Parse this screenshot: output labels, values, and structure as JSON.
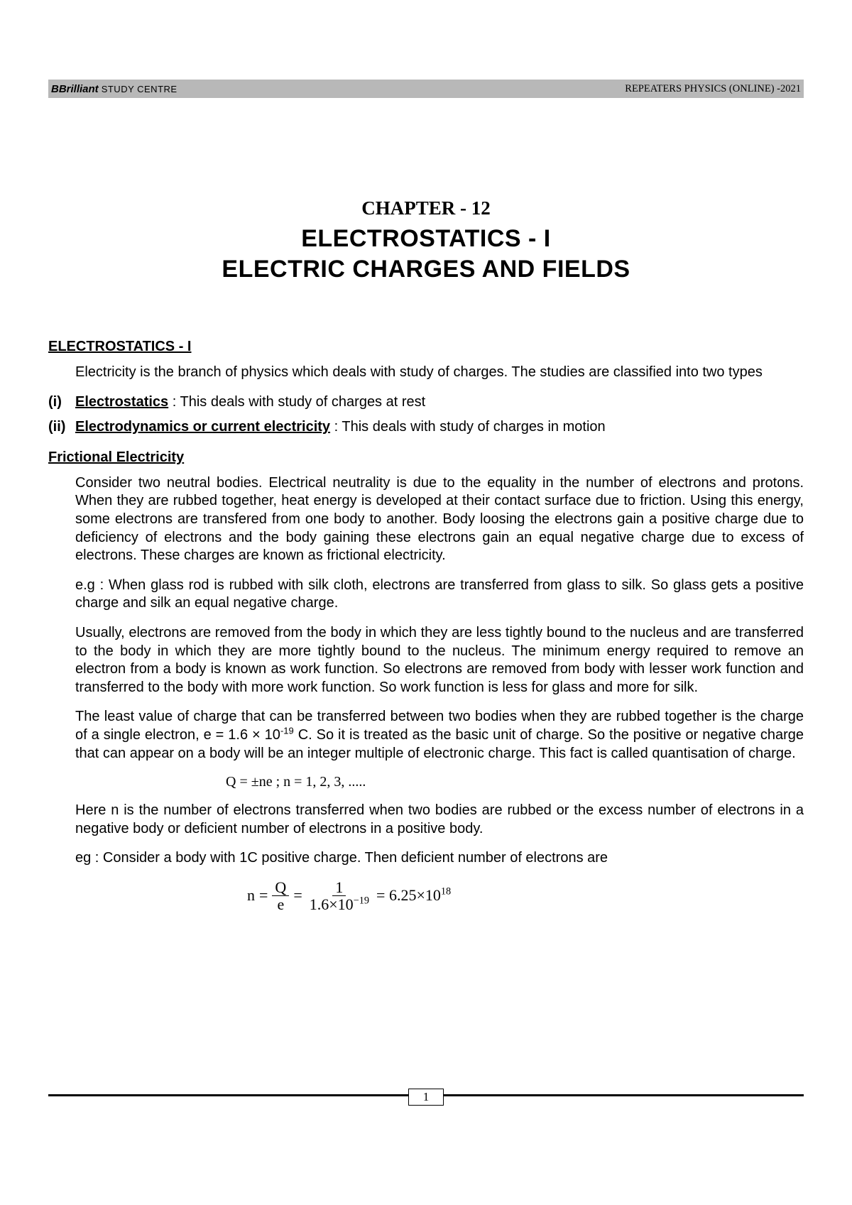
{
  "header": {
    "brand_bold": "BBrilliant",
    "brand_small": "STUDY CENTRE",
    "right": "REPEATERS PHYSICS (ONLINE) -2021"
  },
  "chapter_label": "CHAPTER - 12",
  "title_line1": "ELECTROSTATICS - I",
  "title_line2": "ELECTRIC CHARGES AND FIELDS",
  "section1_heading": "ELECTROSTATICS  -  I",
  "intro_para": "Electricity is the branch of physics which deals with study of charges. The studies are classified into two types",
  "item_i_marker": "(i)",
  "item_i_term": "Electrostatics",
  "item_i_rest": " : This deals with study of charges at rest",
  "item_ii_marker": "(ii)",
  "item_ii_term": "Electrodynamics or current electricity",
  "item_ii_rest": " : This deals with study of charges in motion",
  "subheading_frictional": "Frictional Electricity",
  "para_frictional_1": "Consider two neutral bodies. Electrical neutrality is due to the equality in the number of electrons and protons. When they are rubbed together, heat energy is developed at their contact surface due to friction. Using this energy, some electrons are transfered from one body to another. Body loosing the electrons gain a positive charge due to deficiency of electrons and the body gaining these electrons gain an equal negative charge due to excess of electrons. These charges are known as frictional electricity.",
  "para_frictional_2": "e.g : When glass rod is rubbed with silk cloth, electrons are transferred from glass to silk. So glass gets a positive charge and silk an equal negative charge.",
  "para_frictional_3": "Usually, electrons are removed from the body in which they are less tightly bound to the nucleus and are transferred to the body in which they are more tightly bound to the nucleus. The minimum energy required to remove an electron from a body is known as work function. So electrons are removed from body with lesser work function and transferred to the body with more work function. So work function is less for glass and more for silk.",
  "para_frictional_4a": "The least value of charge that can be transferred between two bodies when they are rubbed together is the charge of a single electron, e = 1.6 × 10",
  "para_frictional_4_exp": "-19",
  "para_frictional_4b": " C. So it is treated as the basic unit of charge. So the positive or negative charge that can appear on a body will be an integer multiple of electronic charge. This fact is called quantisation of charge.",
  "formula_quant": "Q = ±ne ; n = 1, 2, 3, .....",
  "para_here_n": "Here n is the number of electrons transferred when two bodies are rubbed or the excess number of electrons in  a negative body or deficient number of electrons in a positive body.",
  "para_eg": "eg : Consider a body with 1C positive charge. Then deficient number of electrons are",
  "formula": {
    "lhs": "n",
    "eq": "=",
    "frac1_num": "Q",
    "frac1_den": "e",
    "frac2_num": "1",
    "frac2_den_a": "1.6×10",
    "frac2_den_exp": "−19",
    "rhs_a": "= 6.25×10",
    "rhs_exp": "18"
  },
  "page_number": "1",
  "colors": {
    "header_bg": "#b8b8b8",
    "text": "#000000",
    "page_bg": "#ffffff"
  }
}
